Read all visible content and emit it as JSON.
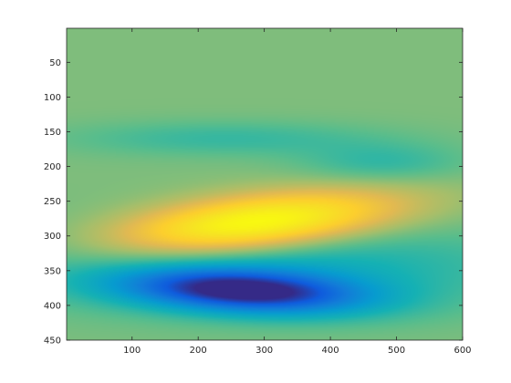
{
  "chart_data": {
    "type": "heatmap",
    "title": "",
    "xlabel": "",
    "ylabel": "",
    "xlim": [
      1,
      600
    ],
    "ylim": [
      1,
      450
    ],
    "y_direction": "reversed",
    "xticks": [
      100,
      200,
      300,
      400,
      500,
      600
    ],
    "yticks": [
      50,
      100,
      150,
      200,
      250,
      300,
      350,
      400,
      450
    ],
    "grid": false,
    "colormap": "parula",
    "color_range": [
      -1,
      1
    ],
    "background_level": 0.1,
    "components": [
      {
        "kind": "peak",
        "x_center": 280,
        "y_center": 283,
        "x_spread": 150,
        "y_spread": 28,
        "tilt": -0.1,
        "amplitude": 1.0
      },
      {
        "kind": "trough",
        "x_center": 270,
        "y_center": 380,
        "x_spread": 130,
        "y_spread": 22,
        "tilt": 0.05,
        "amplitude": -1.0
      },
      {
        "kind": "trough",
        "x_center": 240,
        "y_center": 160,
        "x_spread": 170,
        "y_spread": 18,
        "tilt": 0.0,
        "amplitude": -0.2
      },
      {
        "kind": "trough",
        "x_center": 480,
        "y_center": 195,
        "x_spread": 90,
        "y_spread": 20,
        "tilt": 0.0,
        "amplitude": -0.22
      },
      {
        "kind": "trough",
        "x_center": 300,
        "y_center": 345,
        "x_spread": 280,
        "y_spread": 45,
        "tilt": 0.0,
        "amplitude": -0.35
      }
    ]
  }
}
